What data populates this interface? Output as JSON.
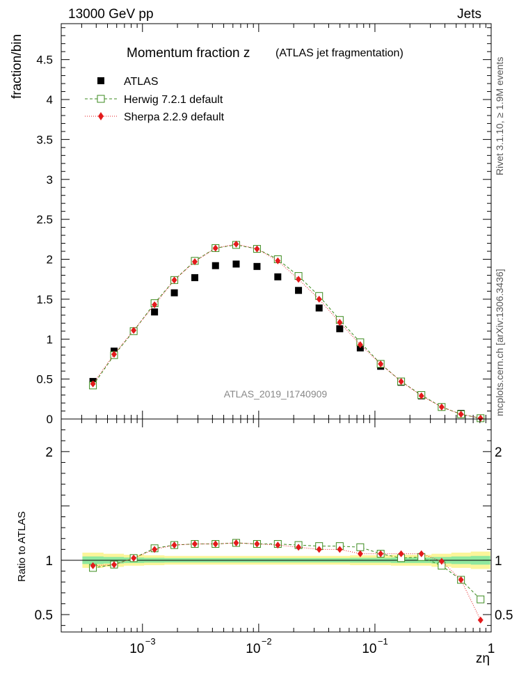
{
  "header": {
    "left": "13000 GeV pp",
    "right": "Jets"
  },
  "side_labels": {
    "rivet": "Rivet 3.1.10, ≥ 1.9M events",
    "mcplots": "mcplots.cern.ch [arXiv:1306.3436]"
  },
  "chart_data": [
    {
      "type": "scatter",
      "title": "Momentum fraction z",
      "subtitle": "(ATLAS jet fragmentation)",
      "ylabel": "fraction/bin",
      "xscale": "log",
      "xlim": [
        0.0002,
        1.0
      ],
      "ylim": [
        0,
        4.95
      ],
      "yticks": [
        0.5,
        1,
        1.5,
        2,
        2.5,
        3,
        3.5,
        4,
        4.5
      ],
      "ytick_labels": [
        "0.5",
        "1",
        "1.5",
        "2",
        "2.5",
        "3",
        "3.5",
        "4",
        "4.5"
      ],
      "bottom_label": "0",
      "watermark": "ATLAS_2019_I1740909",
      "legend_position": "top-left",
      "x": [
        0.000375,
        0.00057,
        0.00084,
        0.00127,
        0.00188,
        0.00282,
        0.00425,
        0.0064,
        0.00967,
        0.0146,
        0.022,
        0.0331,
        0.0498,
        0.0748,
        0.112,
        0.168,
        0.251,
        0.375,
        0.55,
        0.81
      ],
      "series": [
        {
          "name": "ATLAS",
          "style": "data",
          "color": "#000000",
          "values": [
            0.47,
            0.85,
            1.1,
            1.34,
            1.58,
            1.77,
            1.92,
            1.94,
            1.91,
            1.78,
            1.61,
            1.39,
            1.13,
            0.89,
            0.66,
            0.46,
            0.29,
            0.15,
            0.07,
            0.01
          ]
        },
        {
          "name": "Herwig 7.2.1 default",
          "style": "open-square-dashed",
          "color": "#3a8a1c",
          "values": [
            0.42,
            0.8,
            1.1,
            1.45,
            1.74,
            1.98,
            2.14,
            2.18,
            2.13,
            2.0,
            1.79,
            1.54,
            1.24,
            0.96,
            0.69,
            0.47,
            0.3,
            0.15,
            0.06,
            0.01
          ]
        },
        {
          "name": "Sherpa 2.2.9 default",
          "style": "red-diamond-dotted",
          "color": "#e31a1c",
          "values": [
            0.44,
            0.81,
            1.11,
            1.43,
            1.74,
            1.97,
            2.14,
            2.19,
            2.13,
            1.98,
            1.75,
            1.5,
            1.21,
            0.93,
            0.69,
            0.47,
            0.29,
            0.15,
            0.06,
            0.01
          ]
        }
      ]
    },
    {
      "type": "scatter",
      "ylabel": "Ratio to ATLAS",
      "xlabel": "zη",
      "xscale": "log",
      "xlim": [
        0.0002,
        1.0
      ],
      "ylim": [
        0.34,
        2.3
      ],
      "yticks": [
        0.5,
        1,
        2
      ],
      "ytick_labels": [
        "0.5",
        "1",
        "2"
      ],
      "xtick_labels": [
        "10",
        "10",
        "10",
        "1"
      ],
      "xtick_exponents": [
        "−3",
        "−2",
        "−1",
        ""
      ],
      "xtick_values": [
        0.001,
        0.01,
        0.1,
        1
      ],
      "x": [
        0.000375,
        0.00057,
        0.00084,
        0.00127,
        0.00188,
        0.00282,
        0.00425,
        0.0064,
        0.00967,
        0.0146,
        0.022,
        0.0331,
        0.0498,
        0.0748,
        0.112,
        0.168,
        0.251,
        0.375,
        0.55,
        0.81
      ],
      "band_yellow_halfwidth": [
        0.07,
        0.06,
        0.05,
        0.045,
        0.04,
        0.04,
        0.04,
        0.04,
        0.04,
        0.04,
        0.04,
        0.04,
        0.04,
        0.045,
        0.045,
        0.05,
        0.05,
        0.06,
        0.07,
        0.08
      ],
      "band_green_halfwidth": [
        0.035,
        0.03,
        0.025,
        0.022,
        0.02,
        0.02,
        0.02,
        0.02,
        0.02,
        0.02,
        0.02,
        0.02,
        0.02,
        0.022,
        0.022,
        0.025,
        0.025,
        0.03,
        0.035,
        0.04
      ],
      "series": [
        {
          "name": "Herwig 7.2.1 default",
          "style": "open-square-dashed",
          "color": "#3a8a1c",
          "values": [
            0.93,
            0.96,
            1.02,
            1.11,
            1.14,
            1.15,
            1.15,
            1.16,
            1.15,
            1.15,
            1.14,
            1.13,
            1.13,
            1.12,
            1.06,
            1.02,
            1.03,
            0.95,
            0.82,
            0.64
          ]
        },
        {
          "name": "Sherpa 2.2.9 default",
          "style": "red-diamond-dotted",
          "color": "#e31a1c",
          "values": [
            0.95,
            0.96,
            1.02,
            1.1,
            1.14,
            1.15,
            1.15,
            1.16,
            1.15,
            1.14,
            1.12,
            1.1,
            1.1,
            1.06,
            1.06,
            1.06,
            1.06,
            0.99,
            0.82,
            0.45
          ]
        }
      ]
    }
  ]
}
